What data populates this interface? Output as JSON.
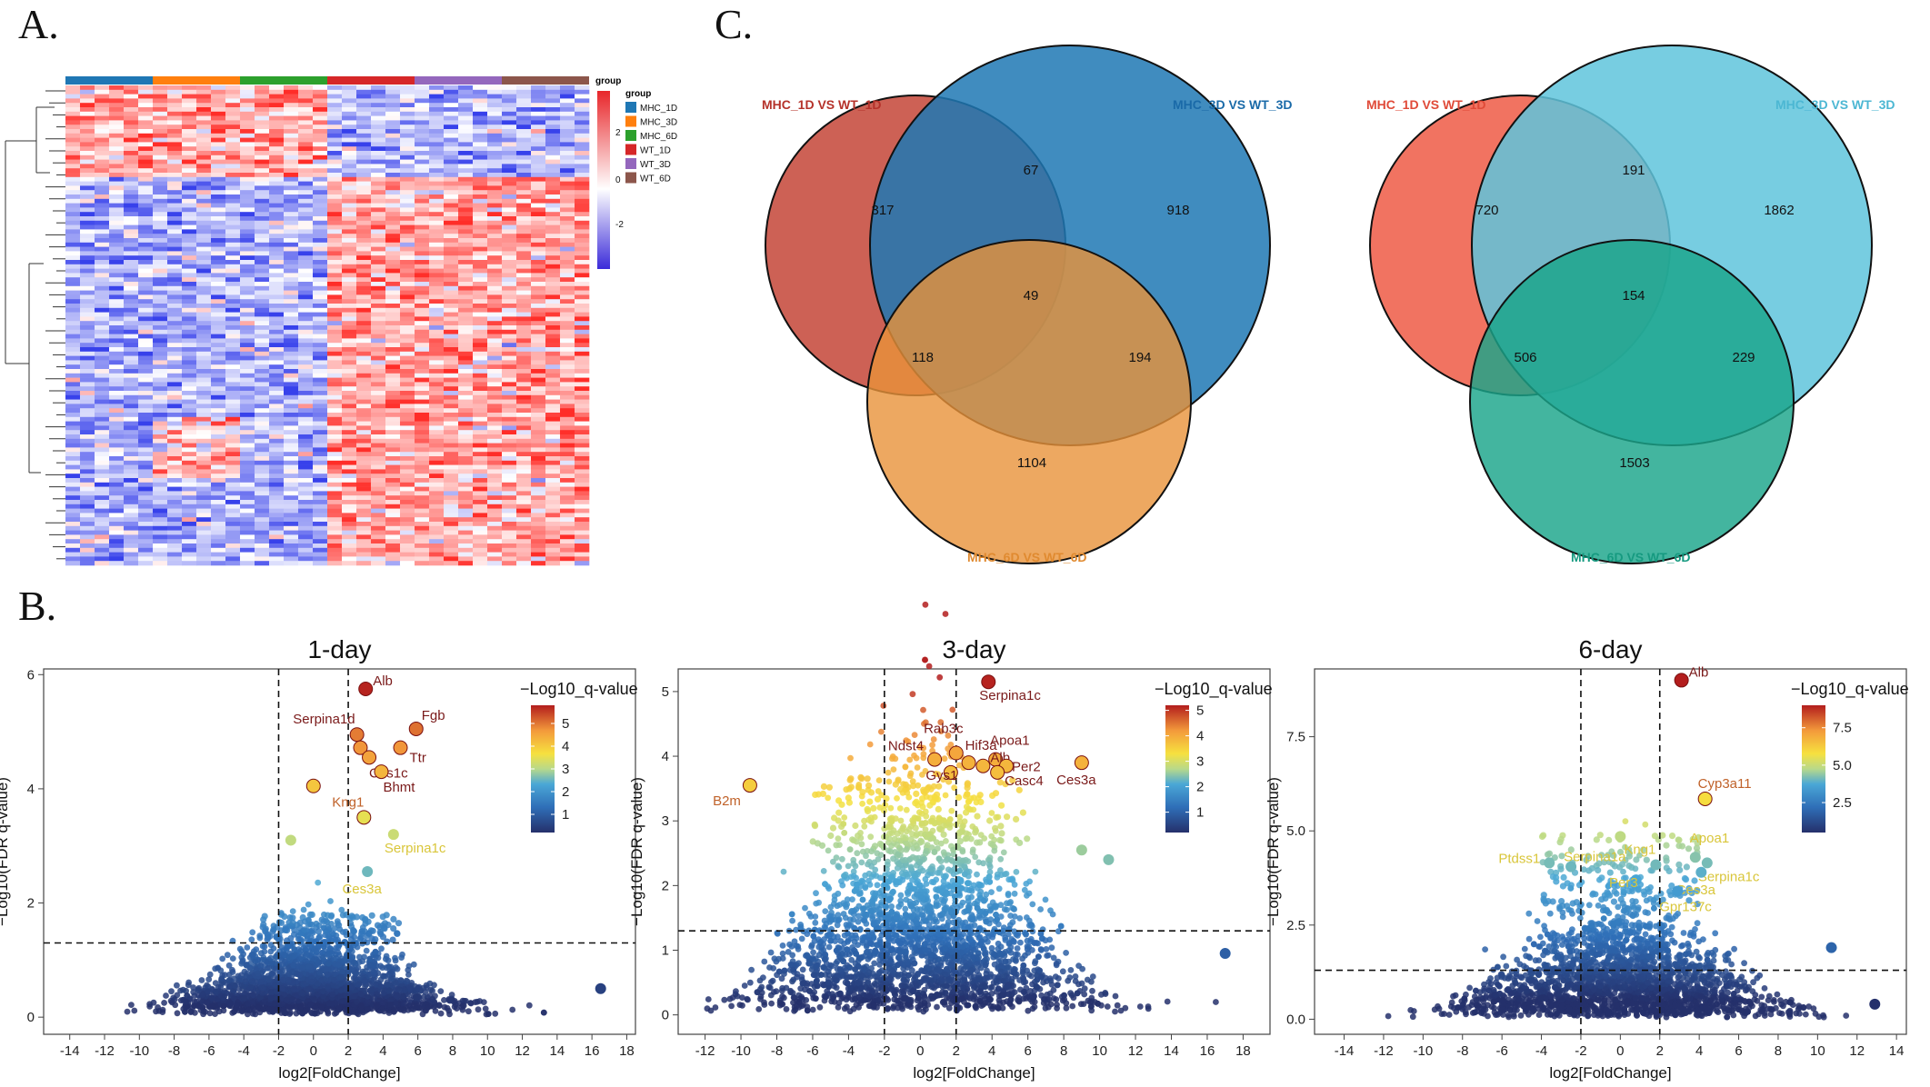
{
  "panels": {
    "a": "A.",
    "b": "B.",
    "c": "C."
  },
  "colors": {
    "mhc1d": "#1f77b4",
    "mhc3d": "#ff7f0e",
    "mhc6d": "#2ca02c",
    "wt1d": "#d62728",
    "wt3d": "#9467bd",
    "wt6d": "#8c564b",
    "venn_red": "#c0392b",
    "venn_blue": "#1f78b4",
    "venn_orange": "#e8923a",
    "venn_salmon": "#ef5a45",
    "venn_cyan": "#5fc4dc",
    "venn_teal": "#1aa58a"
  },
  "heatmap": {
    "legend_title": "group",
    "legend_items": [
      "MHC_1D",
      "MHC_3D",
      "MHC_6D",
      "WT_1D",
      "WT_3D",
      "WT_6D"
    ],
    "colorbar_ticks": [
      "2",
      "0",
      "-2"
    ]
  },
  "chart_data": [
    {
      "type": "scatter",
      "title": "1-day",
      "xlabel": "log2[FoldChange]",
      "ylabel": "−Log10(FDR q-value)",
      "xlim": [
        -15.5,
        18.5
      ],
      "ylim": [
        -0.3,
        6.1
      ],
      "xticks": [
        -14,
        -12,
        -10,
        -8,
        -6,
        -4,
        -2,
        0,
        2,
        4,
        6,
        8,
        10,
        12,
        14,
        16,
        18
      ],
      "yticks": [
        0,
        2,
        4,
        6
      ],
      "vlines": [
        -2,
        2
      ],
      "hline": 1.3,
      "colorbar": {
        "title": "−Log10_q-value",
        "min": 0.2,
        "max": 5.8,
        "ticks": [
          1,
          2,
          3,
          4,
          5
        ]
      },
      "cloud": {
        "width": 9,
        "height": 1.3,
        "extra_x": [
          -3,
          5
        ],
        "extra_y": [
          1.3,
          1.8
        ]
      },
      "points": [
        {
          "x": 3.0,
          "y": 5.75,
          "q": 5.75,
          "label": "Alb"
        },
        {
          "x": 5.9,
          "y": 5.05,
          "q": 5.05,
          "label": "Fgb"
        },
        {
          "x": 2.5,
          "y": 4.95,
          "q": 4.95,
          "label": "Serpina1d"
        },
        {
          "x": 5.0,
          "y": 4.72,
          "q": 4.72,
          "label": "Ttr"
        },
        {
          "x": 2.7,
          "y": 4.72,
          "q": 4.72,
          "label": ""
        },
        {
          "x": 3.2,
          "y": 4.55,
          "q": 4.55,
          "label": "Ces1c"
        },
        {
          "x": 3.9,
          "y": 4.3,
          "q": 4.3,
          "label": "Bhmt"
        },
        {
          "x": 0.0,
          "y": 4.05,
          "q": 4.05,
          "label": ""
        },
        {
          "x": 2.9,
          "y": 3.5,
          "q": 3.5,
          "label": "Kng1"
        },
        {
          "x": 4.6,
          "y": 3.2,
          "q": 3.2,
          "label": "Serpina1c"
        },
        {
          "x": -1.3,
          "y": 3.1,
          "q": 3.1,
          "label": ""
        },
        {
          "x": 3.1,
          "y": 2.55,
          "q": 2.55,
          "label": "Ces3a"
        },
        {
          "x": 16.5,
          "y": 0.5,
          "q": 0.5,
          "label": ""
        }
      ]
    },
    {
      "type": "scatter",
      "title": "3-day",
      "xlabel": "log2[FoldChange]",
      "ylabel": "−Log10(FDR q-value)",
      "xlim": [
        -13.5,
        19.5
      ],
      "ylim": [
        -0.3,
        5.35
      ],
      "xticks": [
        -12,
        -10,
        -8,
        -6,
        -4,
        -2,
        0,
        2,
        4,
        6,
        8,
        10,
        12,
        14,
        16,
        18
      ],
      "yticks": [
        0,
        1,
        2,
        3,
        4,
        5
      ],
      "vlines": [
        -2,
        2
      ],
      "hline": 1.3,
      "colorbar": {
        "title": "−Log10_q-value",
        "min": 0.2,
        "max": 5.2,
        "ticks": [
          1,
          2,
          3,
          4,
          5
        ]
      },
      "cloud": {
        "width": 10,
        "height": 3.5,
        "extra_x": [
          -6,
          6
        ],
        "extra_y": [
          2.6,
          3.7
        ]
      },
      "points": [
        {
          "x": 3.8,
          "y": 5.15,
          "q": 5.15,
          "label": "Serpina1c"
        },
        {
          "x": 2.0,
          "y": 4.05,
          "q": 4.05,
          "label": "Rab3c"
        },
        {
          "x": 2.7,
          "y": 3.9,
          "q": 3.9,
          "label": "Hif3a"
        },
        {
          "x": 0.8,
          "y": 3.95,
          "q": 3.95,
          "label": "Ndst4"
        },
        {
          "x": 4.2,
          "y": 3.95,
          "q": 3.95,
          "label": "Apoa1"
        },
        {
          "x": 3.5,
          "y": 3.85,
          "q": 3.85,
          "label": "Alb"
        },
        {
          "x": 4.8,
          "y": 3.85,
          "q": 3.85,
          "label": "Per2"
        },
        {
          "x": 1.7,
          "y": 3.75,
          "q": 3.75,
          "label": "Gys1"
        },
        {
          "x": 4.3,
          "y": 3.75,
          "q": 3.75,
          "label": "Casc4"
        },
        {
          "x": 9.0,
          "y": 3.9,
          "q": 3.9,
          "label": "Ces3a"
        },
        {
          "x": -9.5,
          "y": 3.55,
          "q": 3.55,
          "label": "B2m"
        },
        {
          "x": 9.0,
          "y": 2.55,
          "q": 2.55,
          "label": ""
        },
        {
          "x": 10.5,
          "y": 2.4,
          "q": 2.4,
          "label": ""
        },
        {
          "x": 17.0,
          "y": 0.95,
          "q": 0.95,
          "label": ""
        }
      ]
    },
    {
      "type": "scatter",
      "title": "6-day",
      "xlabel": "log2[FoldChange]",
      "ylabel": "−Log10(FDR q-value)",
      "xlim": [
        -15.5,
        14.5
      ],
      "ylim": [
        -0.4,
        9.3
      ],
      "xticks": [
        -14,
        -12,
        -10,
        -8,
        -6,
        -4,
        -2,
        0,
        2,
        4,
        6,
        8,
        10,
        12,
        14
      ],
      "yticks": [
        0.0,
        2.5,
        5.0,
        7.5
      ],
      "vlines": [
        -2,
        2
      ],
      "hline": 1.3,
      "colorbar": {
        "title": "−Log10_q-value",
        "min": 0.5,
        "max": 9.0,
        "ticks": [
          2.5,
          5.0,
          7.5
        ]
      },
      "cloud": {
        "width": 9,
        "height": 2.9,
        "extra_x": [
          -4,
          4
        ],
        "extra_y": [
          3.0,
          4.9
        ]
      },
      "points": [
        {
          "x": 3.1,
          "y": 9.0,
          "q": 9.0,
          "label": "Alb"
        },
        {
          "x": 4.3,
          "y": 5.85,
          "q": 5.85,
          "label": "Cyp3a11"
        },
        {
          "x": 0.0,
          "y": 4.85,
          "q": 4.85,
          "label": ""
        },
        {
          "x": 3.8,
          "y": 4.3,
          "q": 4.3,
          "label": "Apoa1"
        },
        {
          "x": 4.4,
          "y": 4.15,
          "q": 4.15,
          "label": "Serpina1c"
        },
        {
          "x": -3.6,
          "y": 4.15,
          "q": 4.15,
          "label": "Ptdss1"
        },
        {
          "x": -2.5,
          "y": 4.05,
          "q": 4.05,
          "label": "Serpina1a"
        },
        {
          "x": 1.8,
          "y": 4.1,
          "q": 4.1,
          "label": "Kng1"
        },
        {
          "x": 4.1,
          "y": 3.9,
          "q": 3.9,
          "label": "Ces3a"
        },
        {
          "x": 0.8,
          "y": 3.7,
          "q": 3.7,
          "label": "Per3"
        },
        {
          "x": 2.9,
          "y": 3.4,
          "q": 3.4,
          "label": "Gpr137c"
        },
        {
          "x": 10.7,
          "y": 1.9,
          "q": 1.9,
          "label": ""
        },
        {
          "x": 12.9,
          "y": 0.4,
          "q": 0.4,
          "label": ""
        }
      ]
    },
    {
      "type": "venn",
      "sets": [
        "MHC_1D VS WT_1D",
        "MHC_3D VS WT_3D",
        "MHC_6D VS WT_6D"
      ],
      "regions": {
        "only_a": 317,
        "only_b": 918,
        "only_c": 1104,
        "ab": 67,
        "ac": 118,
        "bc": 194,
        "abc": 49
      }
    },
    {
      "type": "venn",
      "sets": [
        "MHC_1D VS WT_1D",
        "MHC_3D VS WT_3D",
        "MHC_6D VS WT_6D"
      ],
      "regions": {
        "only_a": 720,
        "only_b": 1862,
        "only_c": 1503,
        "ab": 191,
        "ac": 506,
        "bc": 229,
        "abc": 154
      }
    }
  ]
}
